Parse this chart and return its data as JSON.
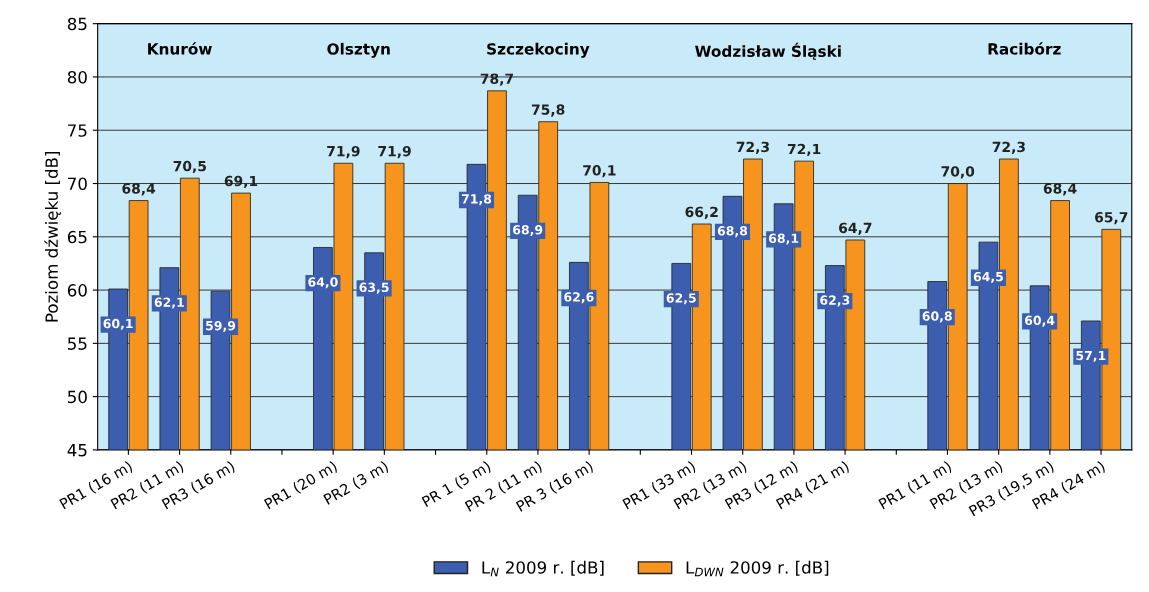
{
  "chart_data": {
    "type": "bar",
    "ylabel": "Poziom dźwięku [dB]",
    "categories": [
      "PR1 (16 m)",
      "PR2 (11 m)",
      "PR3 (16 m)",
      null,
      "PR1 (20 m)",
      "PR2 (3 m)",
      null,
      "PR 1 (5 m)",
      "PR 2 (11 m)",
      "PR 3 (16 m)",
      null,
      "PR1 (33 m)",
      "PR2 (13 m)",
      "PR3 (12 m)",
      "PR4 (21 m)",
      null,
      "PR1 (11 m)",
      "PR2 (13 m)",
      "PR3 (19,5 m)",
      "PR4 (24 m)"
    ],
    "series": [
      {
        "name": "L$_{N}$ 2009 r. [dB]",
        "color": "#3d5eae",
        "values": [
          60.1,
          62.1,
          59.9,
          null,
          64.0,
          63.5,
          null,
          71.8,
          68.9,
          62.6,
          null,
          62.5,
          68.8,
          68.1,
          62.3,
          null,
          60.8,
          64.5,
          60.4,
          57.1
        ],
        "value_labels": [
          "60,1",
          "62,1",
          "59,9",
          null,
          "64,0",
          "63,5",
          null,
          "71,8",
          "68,9",
          "62,6",
          null,
          "62,5",
          "68,8",
          "68,1",
          "62,3",
          null,
          "60,8",
          "64,5",
          "60,4",
          "57,1"
        ]
      },
      {
        "name": "L$_{DWN}$ 2009 r. [dB]",
        "color": "#f7941d",
        "values": [
          68.4,
          70.5,
          69.1,
          null,
          71.9,
          71.9,
          null,
          78.7,
          75.8,
          70.1,
          null,
          66.2,
          72.3,
          72.1,
          64.7,
          null,
          70.0,
          72.3,
          68.4,
          65.7
        ],
        "value_labels": [
          "68,4",
          "70,5",
          "69,1",
          null,
          "71,9",
          "71,9",
          null,
          "78,7",
          "75,8",
          "70,1",
          null,
          "66,2",
          "72,3",
          "72,1",
          "64,7",
          null,
          "70,0",
          "72,3",
          "68,4",
          "65,7"
        ]
      }
    ],
    "annotations": [
      "Knurów",
      "Olsztyn",
      "Szczekociny",
      "Wodzisław Śląski",
      "Racibórz"
    ],
    "ylim": [
      45,
      85
    ],
    "yticks": [
      45,
      50,
      55,
      60,
      65,
      70,
      75,
      80,
      85
    ],
    "grid": "y",
    "legend": "bottom"
  }
}
